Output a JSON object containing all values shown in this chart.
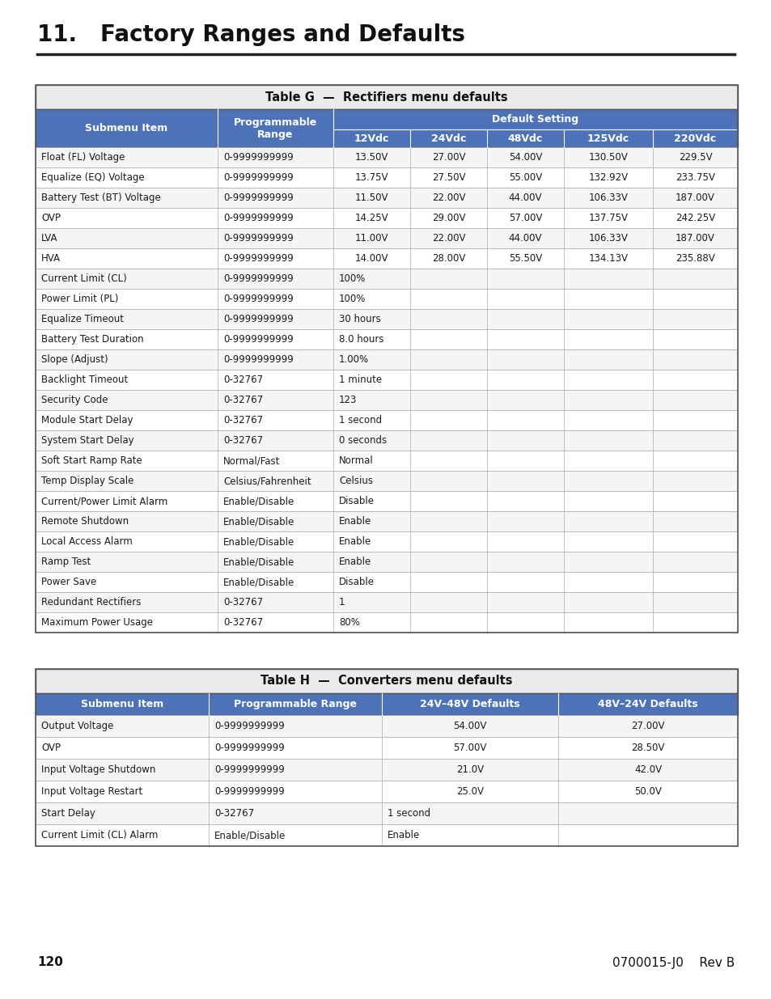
{
  "title": "11.   Factory Ranges and Defaults",
  "page_num": "120",
  "doc_ref": "0700015-J0    Rev B",
  "bg_color": "#ffffff",
  "header_blue": "#4d72b8",
  "table_title_bg": "#ebebeb",
  "row_odd_bg": "#f5f5f5",
  "row_even_bg": "#ffffff",
  "border_dark": "#555555",
  "border_light": "#aaaaaa",
  "table_g_title": "Table G  —  Rectifiers menu defaults",
  "table_g_rows": [
    [
      "Float (FL) Voltage",
      "0-9999999999",
      "13.50V",
      "27.00V",
      "54.00V",
      "130.50V",
      "229.5V"
    ],
    [
      "Equalize (EQ) Voltage",
      "0-9999999999",
      "13.75V",
      "27.50V",
      "55.00V",
      "132.92V",
      "233.75V"
    ],
    [
      "Battery Test (BT) Voltage",
      "0-9999999999",
      "11.50V",
      "22.00V",
      "44.00V",
      "106.33V",
      "187.00V"
    ],
    [
      "OVP",
      "0-9999999999",
      "14.25V",
      "29.00V",
      "57.00V",
      "137.75V",
      "242.25V"
    ],
    [
      "LVA",
      "0-9999999999",
      "11.00V",
      "22.00V",
      "44.00V",
      "106.33V",
      "187.00V"
    ],
    [
      "HVA",
      "0-9999999999",
      "14.00V",
      "28.00V",
      "55.50V",
      "134.13V",
      "235.88V"
    ],
    [
      "Current Limit (CL)",
      "0-9999999999",
      "100%",
      "",
      "",
      "",
      ""
    ],
    [
      "Power Limit (PL)",
      "0-9999999999",
      "100%",
      "",
      "",
      "",
      ""
    ],
    [
      "Equalize Timeout",
      "0-9999999999",
      "30 hours",
      "",
      "",
      "",
      ""
    ],
    [
      "Battery Test Duration",
      "0-9999999999",
      "8.0 hours",
      "",
      "",
      "",
      ""
    ],
    [
      "Slope (Adjust)",
      "0-9999999999",
      "1.00%",
      "",
      "",
      "",
      ""
    ],
    [
      "Backlight Timeout",
      "0-32767",
      "1 minute",
      "",
      "",
      "",
      ""
    ],
    [
      "Security Code",
      "0-32767",
      "123",
      "",
      "",
      "",
      ""
    ],
    [
      "Module Start Delay",
      "0-32767",
      "1 second",
      "",
      "",
      "",
      ""
    ],
    [
      "System Start Delay",
      "0-32767",
      "0 seconds",
      "",
      "",
      "",
      ""
    ],
    [
      "Soft Start Ramp Rate",
      "Normal/Fast",
      "Normal",
      "",
      "",
      "",
      ""
    ],
    [
      "Temp Display Scale",
      "Celsius/Fahrenheit",
      "Celsius",
      "",
      "",
      "",
      ""
    ],
    [
      "Current/Power Limit Alarm",
      "Enable/Disable",
      "Disable",
      "",
      "",
      "",
      ""
    ],
    [
      "Remote Shutdown",
      "Enable/Disable",
      "Enable",
      "",
      "",
      "",
      ""
    ],
    [
      "Local Access Alarm",
      "Enable/Disable",
      "Enable",
      "",
      "",
      "",
      ""
    ],
    [
      "Ramp Test",
      "Enable/Disable",
      "Enable",
      "",
      "",
      "",
      ""
    ],
    [
      "Power Save",
      "Enable/Disable",
      "Disable",
      "",
      "",
      "",
      ""
    ],
    [
      "Redundant Rectifiers",
      "0-32767",
      "1",
      "",
      "",
      "",
      ""
    ],
    [
      "Maximum Power Usage",
      "0-32767",
      "80%",
      "",
      "",
      "",
      ""
    ]
  ],
  "table_h_title": "Table H  —  Converters menu defaults",
  "table_h_header": [
    "Submenu Item",
    "Programmable Range",
    "24V–48V Defaults",
    "48V–24V Defaults"
  ],
  "table_h_rows": [
    [
      "Output Voltage",
      "0-9999999999",
      "54.00V",
      "27.00V"
    ],
    [
      "OVP",
      "0-9999999999",
      "57.00V",
      "28.50V"
    ],
    [
      "Input Voltage Shutdown",
      "0-9999999999",
      "21.0V",
      "42.0V"
    ],
    [
      "Input Voltage Restart",
      "0-9999999999",
      "25.0V",
      "50.0V"
    ],
    [
      "Start Delay",
      "0-32767",
      "1 second",
      ""
    ],
    [
      "Current Limit (CL) Alarm",
      "Enable/Disable",
      "Enable",
      ""
    ]
  ]
}
